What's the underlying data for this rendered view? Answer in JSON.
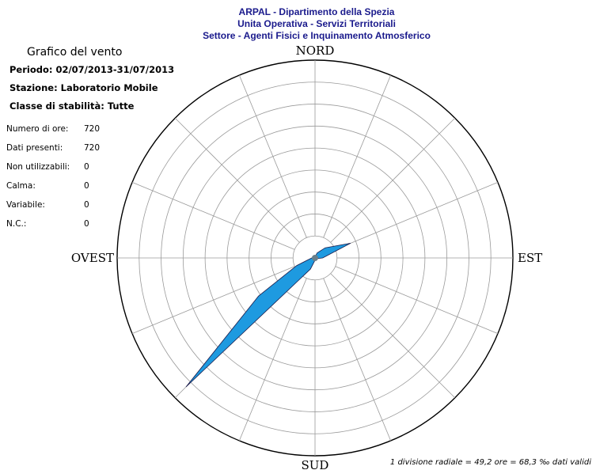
{
  "header": {
    "line1": "ARPAL - Dipartimento della Spezia",
    "line2": "Unita Operativa - Servizi Territoriali",
    "line3": "Settore - Agenti Fisici e Inquinamento Atmosferico"
  },
  "panel": {
    "title": "Grafico del vento",
    "periodo": "Periodo: 02/07/2013-31/07/2013",
    "stazione": "Stazione: Laboratorio Mobile",
    "classe": "Classe di stabilità: Tutte",
    "stats": [
      {
        "label": "Numero di ore:",
        "value": "720"
      },
      {
        "label": "Dati presenti:",
        "value": "720"
      },
      {
        "label": "Non utilizzabili:",
        "value": "0"
      },
      {
        "label": "Calma:",
        "value": "0"
      },
      {
        "label": "Variabile:",
        "value": "0"
      },
      {
        "label": "N.C.:",
        "value": "0"
      }
    ]
  },
  "footer": "1 divisione radiale = 49,2 ore = 68,3 ‰ dati validi",
  "chart_data": {
    "type": "wind-rose",
    "directions": {
      "N": "NORD",
      "E": "EST",
      "S": "SUD",
      "W": "OVEST"
    },
    "radial_divisions": 9,
    "angular_spokes": 16,
    "fill_color": "#1e9ae0",
    "unit": "radial divisions",
    "petals": [
      {
        "bearing_deg": 0,
        "value": 0.05
      },
      {
        "bearing_deg": 22.5,
        "value": 0.25
      },
      {
        "bearing_deg": 45,
        "value": 0.65
      },
      {
        "bearing_deg": 67.5,
        "value": 1.75
      },
      {
        "bearing_deg": 90,
        "value": 0.35
      },
      {
        "bearing_deg": 112.5,
        "value": 0.08
      },
      {
        "bearing_deg": 135,
        "value": 0.05
      },
      {
        "bearing_deg": 157.5,
        "value": 0.05
      },
      {
        "bearing_deg": 180,
        "value": 0.1
      },
      {
        "bearing_deg": 202.5,
        "value": 0.55
      },
      {
        "bearing_deg": 225,
        "value": 8.3
      },
      {
        "bearing_deg": 236,
        "value": 3.1
      },
      {
        "bearing_deg": 247.5,
        "value": 0.9
      },
      {
        "bearing_deg": 270,
        "value": 0.15
      },
      {
        "bearing_deg": 292.5,
        "value": 0.05
      },
      {
        "bearing_deg": 315,
        "value": 0.05
      },
      {
        "bearing_deg": 337.5,
        "value": 0.05
      }
    ]
  }
}
